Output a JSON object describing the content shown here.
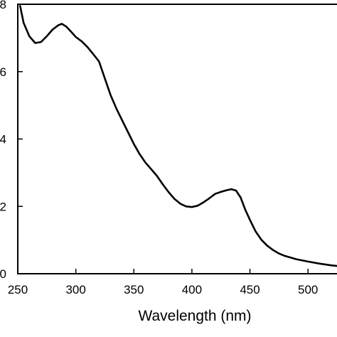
{
  "chart_data": {
    "type": "line",
    "title": "",
    "xlabel": "Wavelength (nm)",
    "ylabel": "",
    "xlim": [
      250,
      525
    ],
    "ylim": [
      0,
      0.8
    ],
    "xticks": [
      250,
      300,
      350,
      400,
      450,
      500
    ],
    "xtick_labels": [
      "250",
      "300",
      "350",
      "400",
      "450",
      "500"
    ],
    "yticks": [
      0,
      0.2,
      0.4,
      0.6,
      0.8
    ],
    "ytick_labels": [
      "0",
      "2",
      "4",
      "6",
      "8"
    ],
    "grid": false,
    "legend": "none",
    "line_color": "#000000",
    "series": [
      {
        "x": [
          252,
          255,
          260,
          265,
          270,
          275,
          280,
          285,
          288,
          292,
          296,
          300,
          305,
          310,
          315,
          320,
          323,
          327,
          330,
          335,
          340,
          345,
          350,
          355,
          360,
          365,
          370,
          375,
          380,
          385,
          390,
          395,
          400,
          405,
          410,
          415,
          420,
          425,
          430,
          434,
          438,
          442,
          446,
          450,
          455,
          460,
          465,
          470,
          475,
          480,
          490,
          500,
          510,
          520,
          525
        ],
        "y": [
          0.795,
          0.745,
          0.705,
          0.685,
          0.688,
          0.705,
          0.725,
          0.738,
          0.742,
          0.733,
          0.718,
          0.703,
          0.69,
          0.673,
          0.652,
          0.63,
          0.6,
          0.56,
          0.53,
          0.49,
          0.455,
          0.42,
          0.385,
          0.355,
          0.33,
          0.31,
          0.29,
          0.265,
          0.242,
          0.222,
          0.208,
          0.2,
          0.198,
          0.202,
          0.212,
          0.224,
          0.237,
          0.243,
          0.248,
          0.251,
          0.247,
          0.226,
          0.19,
          0.16,
          0.125,
          0.1,
          0.083,
          0.07,
          0.06,
          0.053,
          0.043,
          0.036,
          0.03,
          0.025,
          0.023
        ]
      }
    ]
  }
}
